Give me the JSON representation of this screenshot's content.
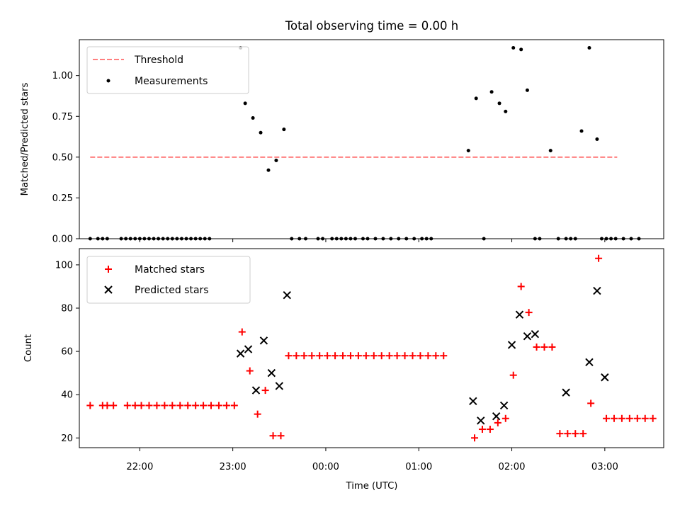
{
  "chart_data": [
    {
      "type": "scatter",
      "title": "Total observing time = 0.00 h",
      "xlabel": "",
      "ylabel": "Matched/Predicted stars",
      "xlim": [
        "21:21",
        "03:38"
      ],
      "ylim": [
        0,
        1.22
      ],
      "yticks": [
        "0.00",
        "0.25",
        "0.50",
        "0.75",
        "1.00"
      ],
      "ytick_values": [
        0,
        0.25,
        0.5,
        0.75,
        1.0
      ],
      "xtick_values": [
        "22:00",
        "23:00",
        "00:00",
        "01:00",
        "02:00",
        "03:00"
      ],
      "legend": {
        "placement": "upper-left",
        "entries": [
          "Threshold",
          "Measurements"
        ]
      },
      "threshold": {
        "name": "Threshold",
        "color": "#ff7f7f",
        "y": 0.5,
        "x_start": "21:28",
        "x_end": "03:08"
      },
      "series": [
        {
          "name": "Measurements",
          "color": "#000000",
          "marker": "dot",
          "points": [
            [
              "21:28",
              0.0
            ],
            [
              "21:33",
              0.0
            ],
            [
              "21:36",
              0.0
            ],
            [
              "21:39",
              0.0
            ],
            [
              "21:48",
              0.0
            ],
            [
              "21:51",
              0.0
            ],
            [
              "21:54",
              0.0
            ],
            [
              "21:57",
              0.0
            ],
            [
              "22:00",
              0.0
            ],
            [
              "22:03",
              0.0
            ],
            [
              "22:06",
              0.0
            ],
            [
              "22:09",
              0.0
            ],
            [
              "22:12",
              0.0
            ],
            [
              "22:15",
              0.0
            ],
            [
              "22:18",
              0.0
            ],
            [
              "22:21",
              0.0
            ],
            [
              "22:24",
              0.0
            ],
            [
              "22:27",
              0.0
            ],
            [
              "22:30",
              0.0
            ],
            [
              "22:33",
              0.0
            ],
            [
              "22:36",
              0.0
            ],
            [
              "22:39",
              0.0
            ],
            [
              "22:42",
              0.0
            ],
            [
              "22:45",
              0.0
            ],
            [
              "23:05",
              1.17
            ],
            [
              "23:08",
              0.83
            ],
            [
              "23:13",
              0.74
            ],
            [
              "23:18",
              0.65
            ],
            [
              "23:23",
              0.42
            ],
            [
              "23:28",
              0.48
            ],
            [
              "23:33",
              0.67
            ],
            [
              "23:38",
              0.0
            ],
            [
              "23:43",
              0.0
            ],
            [
              "23:47",
              0.0
            ],
            [
              "23:55",
              0.0
            ],
            [
              "23:58",
              0.0
            ],
            [
              "00:04",
              0.0
            ],
            [
              "00:07",
              0.0
            ],
            [
              "00:10",
              0.0
            ],
            [
              "00:13",
              0.0
            ],
            [
              "00:16",
              0.0
            ],
            [
              "00:19",
              0.0
            ],
            [
              "00:24",
              0.0
            ],
            [
              "00:27",
              0.0
            ],
            [
              "00:32",
              0.0
            ],
            [
              "00:37",
              0.0
            ],
            [
              "00:42",
              0.0
            ],
            [
              "00:47",
              0.0
            ],
            [
              "00:52",
              0.0
            ],
            [
              "00:57",
              0.0
            ],
            [
              "01:02",
              0.0
            ],
            [
              "01:05",
              0.0
            ],
            [
              "01:08",
              0.0
            ],
            [
              "01:32",
              0.54
            ],
            [
              "01:37",
              0.86
            ],
            [
              "01:42",
              0.0
            ],
            [
              "01:47",
              0.9
            ],
            [
              "01:52",
              0.83
            ],
            [
              "01:56",
              0.78
            ],
            [
              "02:01",
              1.17
            ],
            [
              "02:06",
              1.16
            ],
            [
              "02:10",
              0.91
            ],
            [
              "02:15",
              0.0
            ],
            [
              "02:18",
              0.0
            ],
            [
              "02:25",
              0.54
            ],
            [
              "02:30",
              0.0
            ],
            [
              "02:35",
              0.0
            ],
            [
              "02:38",
              0.0
            ],
            [
              "02:41",
              0.0
            ],
            [
              "02:45",
              0.66
            ],
            [
              "02:50",
              1.17
            ],
            [
              "02:55",
              0.61
            ],
            [
              "02:58",
              0.0
            ],
            [
              "03:01",
              0.0
            ],
            [
              "03:04",
              0.0
            ],
            [
              "03:07",
              0.0
            ],
            [
              "03:12",
              0.0
            ],
            [
              "03:17",
              0.0
            ],
            [
              "03:22",
              0.0
            ]
          ]
        }
      ]
    },
    {
      "type": "scatter",
      "title": "",
      "xlabel": "Time (UTC)",
      "ylabel": "Count",
      "xlim": [
        "21:21",
        "03:38"
      ],
      "ylim": [
        15.5,
        107.5
      ],
      "yticks": [
        "20",
        "40",
        "60",
        "80",
        "100"
      ],
      "ytick_values": [
        20,
        40,
        60,
        80,
        100
      ],
      "xticks": [
        "22:00",
        "23:00",
        "00:00",
        "01:00",
        "02:00",
        "03:00"
      ],
      "legend": {
        "placement": "upper-left",
        "entries": [
          "Matched stars",
          "Predicted stars"
        ]
      },
      "series": [
        {
          "name": "Matched stars",
          "color": "#ff0000",
          "marker": "plus",
          "points": [
            [
              "21:28",
              35
            ],
            [
              "21:36",
              35
            ],
            [
              "21:39",
              35
            ],
            [
              "21:43",
              35
            ],
            [
              "21:52",
              35
            ],
            [
              "21:57",
              35
            ],
            [
              "22:01",
              35
            ],
            [
              "22:06",
              35
            ],
            [
              "22:11",
              35
            ],
            [
              "22:16",
              35
            ],
            [
              "22:21",
              35
            ],
            [
              "22:26",
              35
            ],
            [
              "22:31",
              35
            ],
            [
              "22:36",
              35
            ],
            [
              "22:41",
              35
            ],
            [
              "22:46",
              35
            ],
            [
              "22:51",
              35
            ],
            [
              "22:56",
              35
            ],
            [
              "23:01",
              35
            ],
            [
              "23:06",
              69
            ],
            [
              "23:11",
              51
            ],
            [
              "23:16",
              31
            ],
            [
              "23:21",
              42
            ],
            [
              "23:26",
              21
            ],
            [
              "23:31",
              21
            ],
            [
              "23:36",
              58
            ],
            [
              "23:41",
              58
            ],
            [
              "23:46",
              58
            ],
            [
              "23:51",
              58
            ],
            [
              "23:56",
              58
            ],
            [
              "00:01",
              58
            ],
            [
              "00:06",
              58
            ],
            [
              "00:11",
              58
            ],
            [
              "00:16",
              58
            ],
            [
              "00:21",
              58
            ],
            [
              "00:26",
              58
            ],
            [
              "00:31",
              58
            ],
            [
              "00:36",
              58
            ],
            [
              "00:41",
              58
            ],
            [
              "00:46",
              58
            ],
            [
              "00:51",
              58
            ],
            [
              "00:56",
              58
            ],
            [
              "01:01",
              58
            ],
            [
              "01:06",
              58
            ],
            [
              "01:11",
              58
            ],
            [
              "01:16",
              58
            ],
            [
              "01:36",
              20
            ],
            [
              "01:41",
              24
            ],
            [
              "01:46",
              24
            ],
            [
              "01:51",
              27
            ],
            [
              "01:56",
              29
            ],
            [
              "02:01",
              49
            ],
            [
              "02:06",
              90
            ],
            [
              "02:11",
              78
            ],
            [
              "02:16",
              62
            ],
            [
              "02:21",
              62
            ],
            [
              "02:26",
              62
            ],
            [
              "02:31",
              22
            ],
            [
              "02:36",
              22
            ],
            [
              "02:41",
              22
            ],
            [
              "02:46",
              22
            ],
            [
              "02:51",
              36
            ],
            [
              "02:56",
              103
            ],
            [
              "03:01",
              29
            ],
            [
              "03:06",
              29
            ],
            [
              "03:11",
              29
            ],
            [
              "03:16",
              29
            ],
            [
              "03:21",
              29
            ],
            [
              "03:26",
              29
            ],
            [
              "03:31",
              29
            ]
          ]
        },
        {
          "name": "Predicted stars",
          "color": "#000000",
          "marker": "x",
          "points": [
            [
              "23:05",
              59
            ],
            [
              "23:10",
              61
            ],
            [
              "23:15",
              42
            ],
            [
              "23:20",
              65
            ],
            [
              "23:25",
              50
            ],
            [
              "23:30",
              44
            ],
            [
              "23:35",
              86
            ],
            [
              "01:35",
              37
            ],
            [
              "01:40",
              28
            ],
            [
              "01:50",
              30
            ],
            [
              "01:55",
              35
            ],
            [
              "02:00",
              63
            ],
            [
              "02:05",
              77
            ],
            [
              "02:10",
              67
            ],
            [
              "02:15",
              68
            ],
            [
              "02:35",
              41
            ],
            [
              "02:50",
              55
            ],
            [
              "02:55",
              88
            ],
            [
              "03:00",
              48
            ]
          ]
        }
      ]
    }
  ]
}
